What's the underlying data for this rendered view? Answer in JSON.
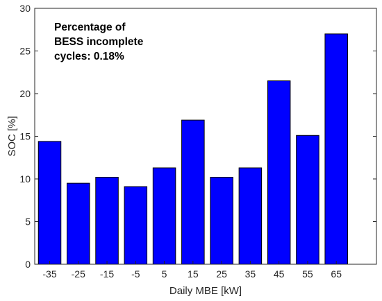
{
  "chart_data": {
    "type": "bar",
    "categories": [
      "-35",
      "-25",
      "-15",
      "-5",
      "5",
      "15",
      "25",
      "35",
      "45",
      "55",
      "65"
    ],
    "values": [
      14.4,
      9.5,
      10.2,
      9.1,
      11.3,
      16.9,
      10.2,
      11.3,
      21.5,
      15.1,
      27.0
    ],
    "xlabel": "Daily MBE [kW]",
    "ylabel": "SOC [%]",
    "ylim": [
      0,
      30
    ],
    "yticks": [
      "0",
      "5",
      "10",
      "15",
      "20",
      "25",
      "30"
    ],
    "annotation": [
      "Percentage of",
      "BESS incomplete",
      "cycles: 0.18%"
    ],
    "bar_color": "#0000ff",
    "bar_edge_color": "#000000",
    "grid": false,
    "box": true
  }
}
